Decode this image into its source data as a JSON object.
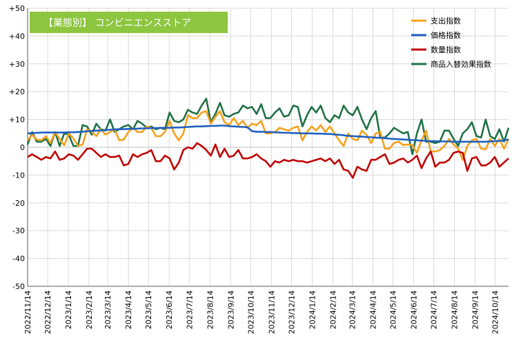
{
  "chart_data": {
    "type": "line",
    "title": "【業態別】 コンビニエンスストア",
    "title_bg": "#8dc63f",
    "ylim": [
      -50,
      50
    ],
    "yticks": [
      50,
      40,
      30,
      20,
      10,
      0,
      -10,
      -20,
      -30,
      -40,
      -50
    ],
    "ytick_labels": [
      "+50",
      "+40",
      "+30",
      "+20",
      "+10",
      "0",
      "-10",
      "-20",
      "-30",
      "-40",
      "-50"
    ],
    "date_ticks": [
      "2022/11/14",
      "2022/12/14",
      "2023/1/14",
      "2023/2/14",
      "2023/3/14",
      "2023/4/14",
      "2023/5/14",
      "2023/6/14",
      "2023/7/14",
      "2023/8/14",
      "2023/9/14",
      "2023/10/14",
      "2023/11/14",
      "2023/12/14",
      "2024/1/14",
      "2024/2/14",
      "2024/3/14",
      "2024/4/14",
      "2024/5/14",
      "2024/6/14",
      "2024/7/14",
      "2024/8/14",
      "2024/9/14",
      "2024/10/14"
    ],
    "x_start": "2022/11/14",
    "x_end": "2024/11/3",
    "legend_position": "top-right",
    "grid": true,
    "series": [
      {
        "name": "支出指数",
        "color": "#f5a01a",
        "values": [
          2.5,
          4.5,
          2.8,
          2.5,
          4.0,
          1.5,
          5.5,
          3.0,
          0.7,
          5.0,
          3.2,
          0.5,
          1.0,
          6.5,
          5.5,
          4.0,
          6.5,
          4.5,
          5.5,
          6.5,
          2.5,
          2.8,
          5.5,
          7.0,
          5.5,
          5.5,
          7.5,
          7.0,
          4.0,
          4.0,
          5.5,
          9.5,
          5.0,
          2.5,
          5.0,
          11.5,
          10.5,
          10.5,
          12.5,
          13.0,
          8.5,
          11.0,
          13.0,
          9.0,
          8.0,
          10.5,
          8.0,
          9.5,
          7.0,
          8.5,
          8.0,
          9.5,
          5.0,
          5.0,
          5.5,
          7.0,
          6.5,
          6.0,
          7.0,
          7.5,
          2.5,
          5.5,
          7.5,
          6.0,
          8.0,
          5.5,
          7.5,
          5.0,
          2.5,
          0.5,
          5.0,
          3.0,
          2.5,
          6.0,
          4.5,
          1.5,
          5.0,
          5.5,
          -0.5,
          -0.5,
          1.5,
          2.0,
          0.8,
          1.0,
          0.8,
          -2.0,
          2.5,
          6.0,
          -1.5,
          -1.5,
          -1.0,
          0.5,
          3.0,
          1.0,
          -0.5,
          -4.5,
          0.5,
          2.5,
          3.0,
          -0.5,
          -0.8,
          3.0,
          0.5,
          3.0,
          -0.5,
          3.0
        ]
      },
      {
        "name": "価格指数",
        "color": "#1f5fbf",
        "values": [
          5.0,
          5.1,
          5.2,
          5.3,
          5.3,
          5.3,
          5.3,
          5.3,
          5.3,
          5.4,
          5.4,
          5.5,
          5.6,
          5.8,
          5.9,
          6.0,
          6.1,
          6.2,
          6.3,
          6.4,
          6.5,
          6.5,
          6.6,
          6.7,
          6.7,
          6.8,
          6.8,
          6.9,
          6.9,
          7.0,
          7.0,
          7.0,
          7.1,
          7.1,
          7.2,
          7.3,
          7.4,
          7.5,
          7.5,
          7.6,
          7.7,
          7.7,
          7.8,
          7.8,
          7.6,
          7.5,
          7.4,
          7.3,
          7.2,
          5.8,
          5.6,
          5.6,
          5.5,
          5.5,
          5.4,
          5.3,
          5.2,
          5.2,
          5.1,
          5.1,
          5.0,
          5.0,
          5.0,
          4.9,
          4.9,
          4.8,
          4.8,
          4.6,
          4.5,
          4.3,
          4.1,
          4.0,
          3.9,
          3.8,
          3.7,
          3.6,
          3.5,
          3.4,
          3.3,
          3.1,
          3.0,
          2.9,
          2.8,
          2.7,
          2.6,
          2.5,
          2.4,
          2.3,
          2.2,
          2.2,
          2.1,
          2.1,
          2.1,
          2.0,
          2.0,
          2.0,
          2.0,
          2.0,
          2.0,
          2.0,
          2.0,
          2.1,
          2.2,
          2.3,
          2.5,
          2.8
        ]
      },
      {
        "name": "数量指数",
        "color": "#c00000",
        "values": [
          -3.5,
          -2.5,
          -3.5,
          -4.5,
          -3.5,
          -4.0,
          -1.5,
          -4.5,
          -4.0,
          -2.5,
          -3.0,
          -4.5,
          -2.5,
          -0.5,
          -0.5,
          -2.0,
          -3.5,
          -2.5,
          -3.5,
          -3.5,
          -3.0,
          -6.5,
          -6.0,
          -2.5,
          -3.5,
          -2.5,
          -2.0,
          -1.0,
          -5.0,
          -5.0,
          -3.0,
          -4.0,
          -8.0,
          -5.5,
          -1.0,
          0.0,
          -0.5,
          1.5,
          0.5,
          -1.0,
          -3.0,
          1.0,
          -3.5,
          -0.5,
          -3.5,
          -3.0,
          -1.0,
          -4.0,
          -4.0,
          -3.5,
          -2.5,
          -4.0,
          -5.0,
          -7.0,
          -5.0,
          -5.5,
          -4.5,
          -5.0,
          -4.5,
          -5.0,
          -5.0,
          -5.5,
          -5.0,
          -4.5,
          -4.0,
          -5.0,
          -4.0,
          -6.0,
          -4.5,
          -8.0,
          -8.5,
          -11.0,
          -7.0,
          -8.0,
          -8.5,
          -4.5,
          -4.5,
          -3.5,
          -2.5,
          -6.0,
          -5.5,
          -4.5,
          -4.0,
          -5.5,
          -4.5,
          -3.0,
          -7.5,
          -4.0,
          -1.5,
          -7.0,
          -5.5,
          -5.5,
          -4.5,
          -2.0,
          -1.5,
          -2.0,
          -8.5,
          -4.0,
          -3.5,
          -6.5,
          -6.5,
          -5.5,
          -3.5,
          -7.0,
          -5.5,
          -4.0
        ]
      },
      {
        "name": "商品入替効果指数",
        "color": "#1e7145",
        "values": [
          1.0,
          5.5,
          2.0,
          2.0,
          3.0,
          0.5,
          5.5,
          0.5,
          5.0,
          4.5,
          0.5,
          0.5,
          8.0,
          7.5,
          4.5,
          8.5,
          6.5,
          6.0,
          10.0,
          5.5,
          6.5,
          7.5,
          8.0,
          6.5,
          9.5,
          8.5,
          7.0,
          7.5,
          6.5,
          7.0,
          6.5,
          12.5,
          9.5,
          9.0,
          10.0,
          13.5,
          12.5,
          12.0,
          15.0,
          17.5,
          9.0,
          12.0,
          16.0,
          11.5,
          11.0,
          12.0,
          12.5,
          15.0,
          14.0,
          14.5,
          12.0,
          15.5,
          10.5,
          10.5,
          12.5,
          14.0,
          11.0,
          11.5,
          15.0,
          14.5,
          7.5,
          11.5,
          14.5,
          12.5,
          15.0,
          10.5,
          9.0,
          11.5,
          10.5,
          15.0,
          12.5,
          11.5,
          14.5,
          10.0,
          6.5,
          10.5,
          13.0,
          3.5,
          3.5,
          5.0,
          7.0,
          6.0,
          5.0,
          5.5,
          -2.5,
          5.0,
          10.0,
          2.0,
          2.0,
          1.5,
          2.0,
          6.0,
          6.0,
          3.0,
          0.5,
          5.0,
          6.5,
          9.0,
          4.0,
          3.5,
          10.0,
          4.0,
          3.0,
          6.5,
          2.0,
          7.0
        ]
      }
    ]
  }
}
